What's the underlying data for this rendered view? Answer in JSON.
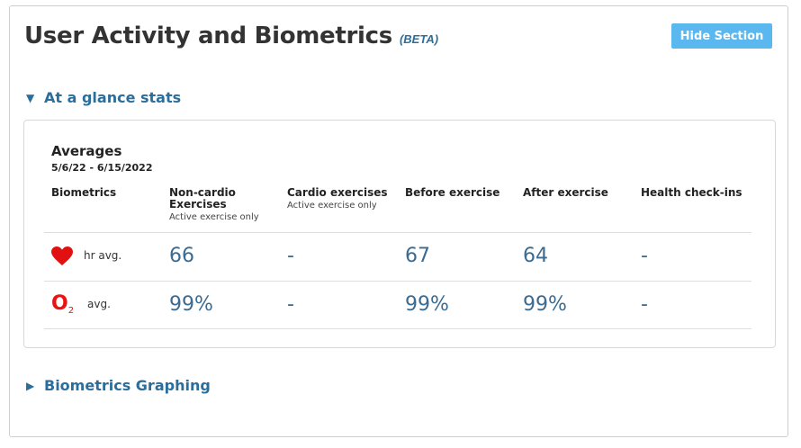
{
  "header": {
    "title": "User Activity and Biometrics",
    "beta": "(BETA)",
    "hide_button": "Hide Section"
  },
  "sections": {
    "glance": {
      "label": "At a glance stats",
      "expanded": true
    },
    "graphing": {
      "label": "Biometrics Graphing",
      "expanded": false
    }
  },
  "averages": {
    "title": "Averages",
    "date_range": "5/6/22 - 6/15/2022",
    "columns": [
      {
        "label": "Biometrics",
        "sub": ""
      },
      {
        "label": "Non-cardio Exercises",
        "sub": "Active exercise only"
      },
      {
        "label": "Cardio exercises",
        "sub": "Active exercise only"
      },
      {
        "label": "Before exercise",
        "sub": ""
      },
      {
        "label": "After exercise",
        "sub": ""
      },
      {
        "label": "Health check-ins",
        "sub": ""
      }
    ],
    "rows": [
      {
        "icon": "heart-icon",
        "label": "hr avg.",
        "values": [
          "66",
          "-",
          "67",
          "64",
          "-"
        ]
      },
      {
        "icon": "o2-icon",
        "icon_text": "O",
        "icon_sub": "2",
        "label": "avg.",
        "values": [
          "99%",
          "-",
          "99%",
          "99%",
          "-"
        ]
      }
    ]
  },
  "colors": {
    "accent": "#2c6e9b",
    "button": "#5bb8ee",
    "heart": "#e11111",
    "value": "#3b6b91"
  }
}
